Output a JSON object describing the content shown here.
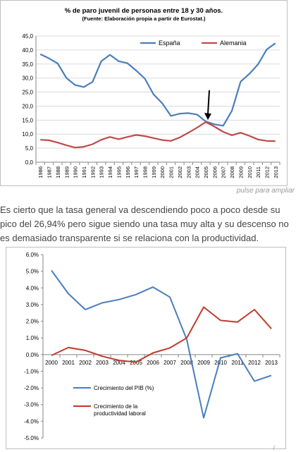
{
  "chart_data": [
    {
      "type": "line",
      "title": "% de paro juvenil de personas entre 18 y 30 años.",
      "subtitle": "(Fuente: Elaboración propia a partir de Eurostat.)",
      "xlabel": "",
      "ylabel": "",
      "ylim": [
        0,
        45
      ],
      "yticks": [
        "0,0",
        "5,0",
        "10,0",
        "15,0",
        "20,0",
        "25,0",
        "30,0",
        "35,0",
        "40,0",
        "45,0"
      ],
      "x": [
        "1986",
        "1987",
        "1988",
        "1989",
        "1990",
        "1991",
        "1992",
        "1993",
        "1994",
        "1995",
        "1996",
        "1997",
        "1998",
        "1999",
        "2000",
        "2001",
        "2002",
        "2003",
        "2004",
        "2005",
        "2006",
        "2007",
        "2008",
        "2009",
        "2010",
        "2011",
        "2012",
        "2013"
      ],
      "series": [
        {
          "name": "España",
          "color": "#4a7ebb",
          "values": [
            38.5,
            37.0,
            35.2,
            30.0,
            27.5,
            26.8,
            28.6,
            36.0,
            38.3,
            36.0,
            35.3,
            32.7,
            29.8,
            24.2,
            21.0,
            16.5,
            17.3,
            17.5,
            17.0,
            14.5,
            13.5,
            13.0,
            18.3,
            28.7,
            31.5,
            34.9,
            40.2,
            42.4
          ]
        },
        {
          "name": "Alemania",
          "color": "#be4b48",
          "values": [
            8.0,
            7.8,
            7.0,
            6.0,
            5.2,
            5.5,
            6.4,
            8.0,
            9.0,
            8.2,
            9.0,
            9.7,
            9.3,
            8.6,
            7.9,
            7.6,
            8.8,
            10.5,
            12.3,
            14.3,
            12.7,
            10.8,
            9.6,
            10.5,
            9.4,
            8.1,
            7.6,
            7.5
          ]
        }
      ],
      "legend_position": "top-right",
      "annotation": "arrow"
    },
    {
      "type": "line",
      "title": "",
      "ylim": [
        -5,
        6
      ],
      "yticks": [
        "-5.0%",
        "-4.0%",
        "-3.0%",
        "-2.0%",
        "-1.0%",
        "0.0%",
        "1.0%",
        "2.0%",
        "3.0%",
        "4.0%",
        "5.0%",
        "6.0%"
      ],
      "x": [
        "2000",
        "2001",
        "2002",
        "2003",
        "2004",
        "2005",
        "2006",
        "2007",
        "2008",
        "2009",
        "2010",
        "2011",
        "2012",
        "2013"
      ],
      "series": [
        {
          "name": "Crecimiento del PIB (%)",
          "color": "#4a7ebb",
          "values": [
            5.05,
            3.65,
            2.7,
            3.1,
            3.3,
            3.6,
            4.05,
            3.45,
            0.9,
            -3.8,
            -0.2,
            0.05,
            -1.6,
            -1.25
          ]
        },
        {
          "name": "Crecimiento de la productividad laboral",
          "color": "#c0392b",
          "values": [
            -0.05,
            0.42,
            0.25,
            -0.1,
            -0.35,
            -0.45,
            0.1,
            0.4,
            1.0,
            2.85,
            2.05,
            1.95,
            2.7,
            1.55
          ]
        }
      ],
      "legend_position": "bottom-center"
    }
  ],
  "caption": "pulse para ampliar",
  "paragraph": "Es cierto que la tasa general va descendiendo poco a poco desde su pico del 26,94%  pero sigue siendo una tasa muy alta y su descenso no es demasiado transparente si se relaciona con la productividad."
}
